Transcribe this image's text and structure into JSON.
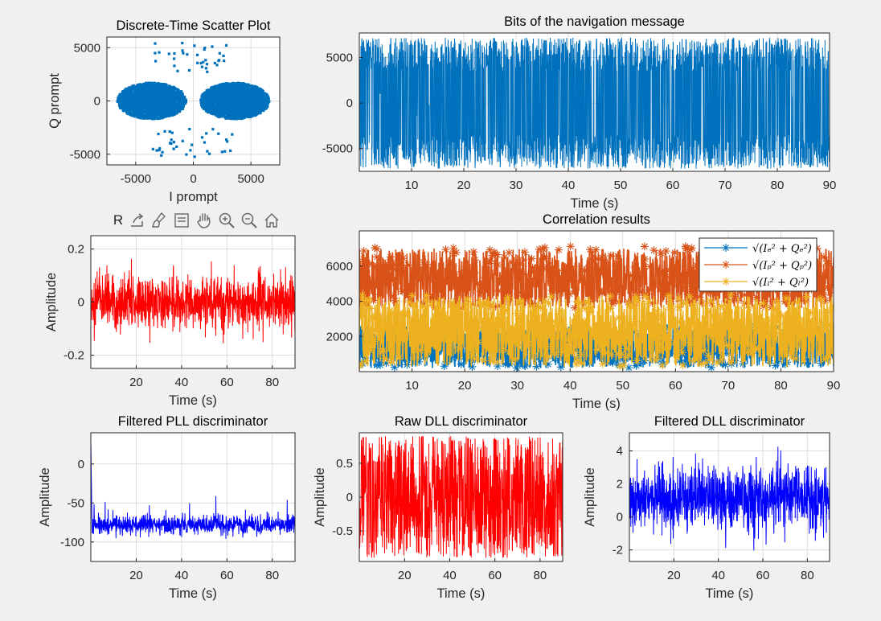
{
  "figure": {
    "background": "#f0f0f0"
  },
  "toolbar": {
    "items": [
      {
        "name": "restore-view",
        "label": "R"
      },
      {
        "name": "export-icon"
      },
      {
        "name": "brush-icon"
      },
      {
        "name": "data-tips-icon"
      },
      {
        "name": "pan-hand-icon"
      },
      {
        "name": "zoom-in-icon"
      },
      {
        "name": "zoom-out-icon"
      },
      {
        "name": "home-icon"
      }
    ]
  },
  "chart_data": [
    {
      "id": "scatter",
      "type": "scatter",
      "title": "Discrete-Time Scatter Plot",
      "xlabel": "I prompt",
      "ylabel": "Q prompt",
      "xlim": [
        -7500,
        7500
      ],
      "ylim": [
        -6000,
        6000
      ],
      "xticks": [
        -5000,
        0,
        5000
      ],
      "yticks": [
        -5000,
        0,
        5000
      ],
      "xtick_labels": [
        "-5000",
        "0",
        "5000"
      ],
      "ytick_labels": [
        "-5000",
        "0",
        "5000"
      ],
      "grid": true,
      "color": "#0072bd",
      "series": [
        {
          "cluster_centers": [
            [
              -3600,
              0
            ],
            [
              3600,
              0
            ]
          ],
          "cluster_spread": [
            2600,
            1700
          ],
          "points_count": 4000
        }
      ]
    },
    {
      "id": "bits",
      "type": "line",
      "title": "Bits of the navigation message",
      "xlabel": "Time (s)",
      "ylabel": "",
      "xlim": [
        0,
        90
      ],
      "ylim": [
        -7500,
        7700
      ],
      "xticks": [
        10,
        20,
        30,
        40,
        50,
        60,
        70,
        80,
        90
      ],
      "yticks": [
        -5000,
        0,
        5000
      ],
      "xtick_labels": [
        "10",
        "20",
        "30",
        "40",
        "50",
        "60",
        "70",
        "80",
        "90"
      ],
      "ytick_labels": [
        "-5000",
        "0",
        "5000"
      ],
      "grid": true,
      "color": "#0072bd",
      "series": [
        {
          "envelope": [
            -6800,
            7000
          ],
          "amplitude_level": 5000
        }
      ]
    },
    {
      "id": "amp",
      "type": "line",
      "title": "",
      "xlabel": "Time (s)",
      "ylabel": "Amplitude",
      "xlim": [
        0,
        90
      ],
      "ylim": [
        -0.25,
        0.25
      ],
      "xticks": [
        20,
        40,
        60,
        80
      ],
      "yticks": [
        -0.2,
        0,
        0.2
      ],
      "xtick_labels": [
        "20",
        "40",
        "60",
        "80"
      ],
      "ytick_labels": [
        "-0.2",
        "0",
        "0.2"
      ],
      "grid": true,
      "color": "#ff0000",
      "series": [
        {
          "mean": 0,
          "std": 0.05,
          "spike_max": 0.23
        }
      ]
    },
    {
      "id": "corr",
      "type": "line",
      "title": "Correlation results",
      "xlabel": "Time (s)",
      "ylabel": "",
      "xlim": [
        0,
        90
      ],
      "ylim": [
        0,
        8000
      ],
      "xticks": [
        10,
        20,
        30,
        40,
        50,
        60,
        70,
        80,
        90
      ],
      "yticks": [
        2000,
        4000,
        6000
      ],
      "xtick_labels": [
        "10",
        "20",
        "30",
        "40",
        "50",
        "60",
        "70",
        "80",
        "90"
      ],
      "ytick_labels": [
        "2000",
        "4000",
        "6000"
      ],
      "grid": true,
      "legend_position": "top-right",
      "series": [
        {
          "name": "√(Iₑ² + Qₑ²)",
          "color": "#0072bd",
          "band": [
            200,
            2600
          ]
        },
        {
          "name": "√(Iₚ² + Qₚ²)",
          "color": "#d95319",
          "band": [
            3600,
            7000
          ]
        },
        {
          "name": "√(Iₗ² + Qₗ²)",
          "color": "#edb120",
          "band": [
            300,
            4300
          ]
        }
      ]
    },
    {
      "id": "pll",
      "type": "line",
      "title": "Filtered PLL discriminator",
      "xlabel": "Time (s)",
      "ylabel": "Amplitude",
      "xlim": [
        0,
        90
      ],
      "ylim": [
        -125,
        40
      ],
      "xticks": [
        20,
        40,
        60,
        80
      ],
      "yticks": [
        -100,
        -50,
        0
      ],
      "xtick_labels": [
        "20",
        "40",
        "60",
        "80"
      ],
      "ytick_labels": [
        "-100",
        "-50",
        "0"
      ],
      "grid": true,
      "color": "#0000ff",
      "series": [
        {
          "mean": -78,
          "std": 6,
          "start_value": 30
        }
      ]
    },
    {
      "id": "rawdll",
      "type": "line",
      "title": "Raw DLL discriminator",
      "xlabel": "Time (s)",
      "ylabel": "Amplitude",
      "xlim": [
        0,
        90
      ],
      "ylim": [
        -0.95,
        0.95
      ],
      "xticks": [
        20,
        40,
        60,
        80
      ],
      "yticks": [
        -0.5,
        0,
        0.5
      ],
      "xtick_labels": [
        "20",
        "40",
        "60",
        "80"
      ],
      "ytick_labels": [
        "-0.5",
        "0",
        "0.5"
      ],
      "grid": true,
      "color": "#ff0000",
      "series": [
        {
          "envelope": [
            -0.9,
            0.9
          ]
        }
      ]
    },
    {
      "id": "fdll",
      "type": "line",
      "title": "Filtered DLL discriminator",
      "xlabel": "Time (s)",
      "ylabel": "Amplitude",
      "xlim": [
        0,
        90
      ],
      "ylim": [
        -2.7,
        5.1
      ],
      "xticks": [
        20,
        40,
        60,
        80
      ],
      "yticks": [
        -2,
        0,
        2,
        4
      ],
      "xtick_labels": [
        "20",
        "40",
        "60",
        "80"
      ],
      "ytick_labels": [
        "-2",
        "0",
        "2",
        "4"
      ],
      "grid": true,
      "color": "#0000ff",
      "series": [
        {
          "mean": 1.2,
          "std": 1.0
        }
      ]
    }
  ]
}
